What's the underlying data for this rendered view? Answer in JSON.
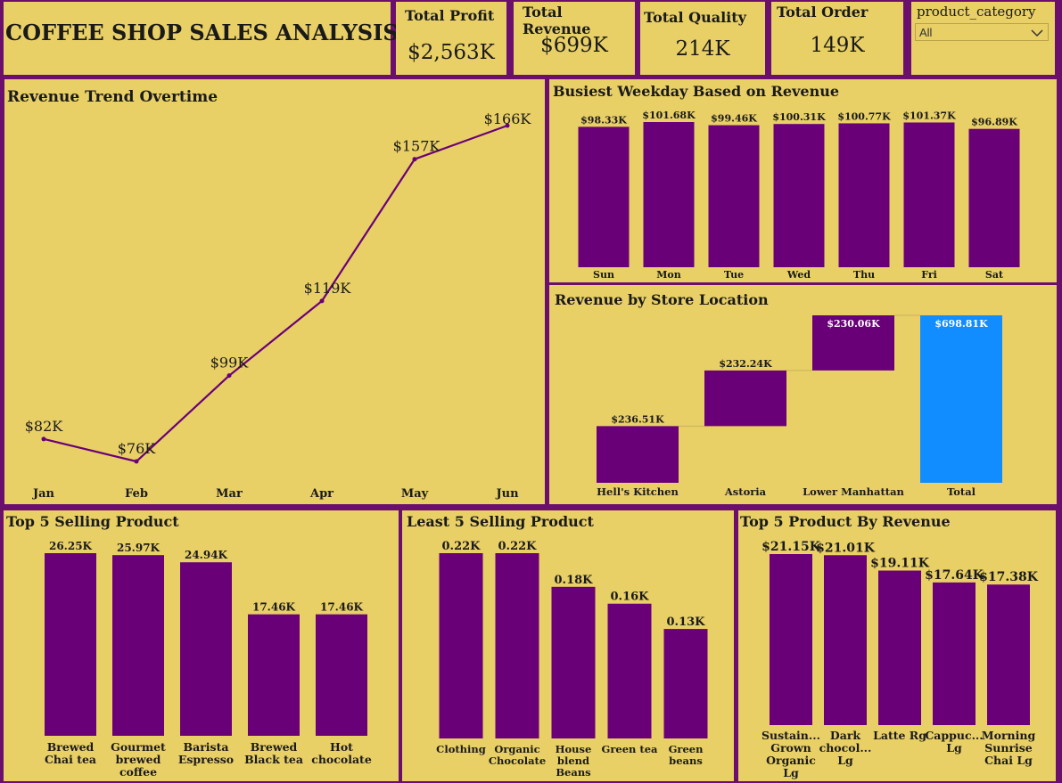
{
  "header": {
    "title": "COFFEE SHOP SALES ANALYSIS"
  },
  "kpis": {
    "profit": {
      "label": "Total Profit",
      "value": "$2,563K"
    },
    "revenue": {
      "label": "Total Revenue",
      "value": "$699K"
    },
    "quality": {
      "label": "Total Quality",
      "value": "214K"
    },
    "orders": {
      "label": "Total Order",
      "value": "149K"
    }
  },
  "slicer": {
    "label": "product_category",
    "value": "All",
    "icon": "chevron-down-icon"
  },
  "colors": {
    "bar": "#6a0078",
    "total": "#118dff",
    "panel": "#e8cf66",
    "frame": "#6a0f6e"
  },
  "chart_data": [
    {
      "id": "trend",
      "type": "line",
      "title": "Revenue Trend Overtime",
      "categories": [
        "Jan",
        "Feb",
        "Mar",
        "Apr",
        "May",
        "Jun"
      ],
      "values": [
        82,
        76,
        99,
        119,
        157,
        166
      ],
      "labels": [
        "$82K",
        "$76K",
        "$99K",
        "$119K",
        "$157K",
        "$166K"
      ]
    },
    {
      "id": "weekday",
      "type": "bar",
      "title": "Busiest Weekday Based on Revenue",
      "categories": [
        "Sun",
        "Mon",
        "Tue",
        "Wed",
        "Thu",
        "Fri",
        "Sat"
      ],
      "values": [
        98.33,
        101.68,
        99.46,
        100.31,
        100.77,
        101.37,
        96.89
      ],
      "labels": [
        "$98.33K",
        "$101.68K",
        "$99.46K",
        "$100.31K",
        "$100.77K",
        "$101.37K",
        "$96.89K"
      ]
    },
    {
      "id": "store",
      "type": "bar",
      "subtype": "waterfall",
      "title": "Revenue by Store Location",
      "categories": [
        "Hell's Kitchen",
        "Astoria",
        "Lower Manhattan",
        "Total"
      ],
      "values": [
        236.51,
        232.24,
        230.06,
        698.81
      ],
      "labels": [
        "$236.51K",
        "$232.24K",
        "$230.06K",
        "$698.81K"
      ]
    },
    {
      "id": "top5",
      "type": "bar",
      "title": "Top 5 Selling Product",
      "categories": [
        [
          "Brewed",
          "Chai tea"
        ],
        [
          "Gourmet",
          "brewed",
          "coffee"
        ],
        [
          "Barista",
          "Espresso"
        ],
        [
          "Brewed",
          "Black tea"
        ],
        [
          "Hot",
          "chocolate"
        ]
      ],
      "values": [
        26.25,
        25.97,
        24.94,
        17.46,
        17.46
      ],
      "labels": [
        "26.25K",
        "25.97K",
        "24.94K",
        "17.46K",
        "17.46K"
      ]
    },
    {
      "id": "least5",
      "type": "bar",
      "title": "Least 5 Selling Product",
      "categories": [
        [
          "Clothing"
        ],
        [
          "Organic",
          "Chocolate"
        ],
        [
          "House",
          "blend",
          "Beans"
        ],
        [
          "Green tea"
        ],
        [
          "Green",
          "beans"
        ]
      ],
      "values": [
        0.22,
        0.22,
        0.18,
        0.16,
        0.13
      ],
      "labels": [
        "0.22K",
        "0.22K",
        "0.18K",
        "0.16K",
        "0.13K"
      ]
    },
    {
      "id": "toprev",
      "type": "bar",
      "title": "Top 5 Product By Revenue",
      "categories": [
        [
          "Sustain...",
          "Grown",
          "Organic",
          "Lg"
        ],
        [
          "Dark",
          "chocol...",
          "Lg"
        ],
        [
          "Latte Rg"
        ],
        [
          "Cappuc...",
          "Lg"
        ],
        [
          "Morning",
          "Sunrise",
          "Chai Lg"
        ]
      ],
      "values": [
        21.15,
        21.01,
        19.11,
        17.64,
        17.38
      ],
      "labels": [
        "$21.15K",
        "$21.01K",
        "$19.11K",
        "$17.64K",
        "$17.38K"
      ]
    }
  ]
}
